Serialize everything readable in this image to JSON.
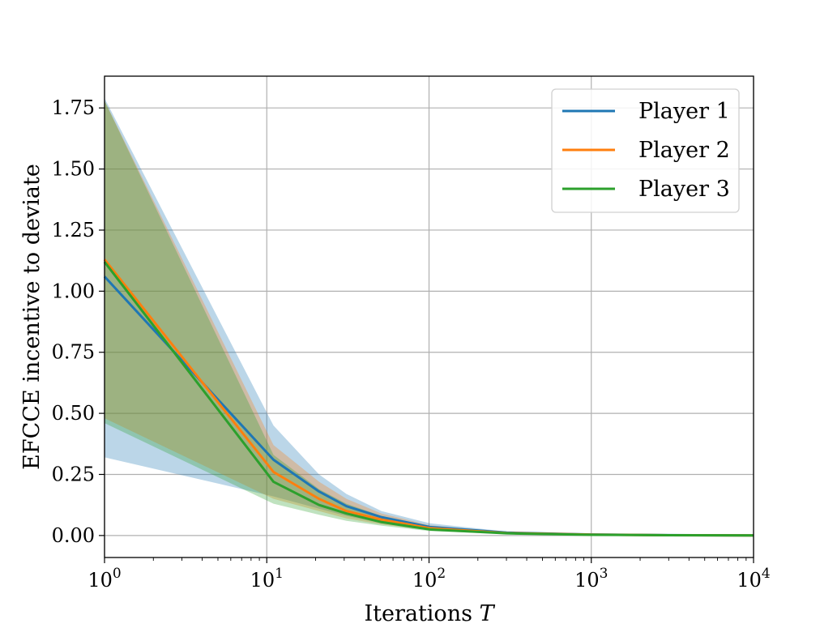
{
  "chart_data": {
    "type": "line",
    "xlabel": "Iterations ",
    "xlabel_var": "T",
    "ylabel": "EFCCE incentive to deviate",
    "xscale": "log",
    "xlim": [
      1,
      10000
    ],
    "ylim": [
      -0.09,
      1.88
    ],
    "grid": true,
    "legend_position": "top-right",
    "y_ticks": [
      "0.00",
      "0.25",
      "0.50",
      "0.75",
      "1.00",
      "1.25",
      "1.50",
      "1.75"
    ],
    "y_tick_values": [
      0,
      0.25,
      0.5,
      0.75,
      1.0,
      1.25,
      1.5,
      1.75
    ],
    "x_tick_values": [
      1,
      10,
      100,
      1000,
      10000
    ],
    "x_tick_base": "10",
    "x_tick_exponents": [
      "0",
      "1",
      "2",
      "3",
      "4"
    ],
    "series": [
      {
        "name": "Player 1",
        "color": "#1f77b4",
        "x": [
          1,
          11,
          21,
          31,
          51,
          101,
          301,
          1001,
          3001,
          10000
        ],
        "y": [
          1.06,
          0.31,
          0.18,
          0.12,
          0.075,
          0.035,
          0.012,
          0.004,
          0.0015,
          0.0005
        ],
        "y_low": [
          0.32,
          0.16,
          0.11,
          0.08,
          0.05,
          0.025,
          0.009,
          0.003,
          0.001,
          0.0003
        ],
        "y_high": [
          1.79,
          0.45,
          0.25,
          0.17,
          0.1,
          0.05,
          0.016,
          0.005,
          0.002,
          0.0007
        ]
      },
      {
        "name": "Player 2",
        "color": "#ff7f0e",
        "x": [
          1,
          11,
          21,
          31,
          51,
          101,
          301,
          1001,
          3001,
          10000
        ],
        "y": [
          1.13,
          0.26,
          0.15,
          0.1,
          0.065,
          0.03,
          0.01,
          0.0035,
          0.0013,
          0.0004
        ],
        "y_low": [
          0.48,
          0.15,
          0.1,
          0.07,
          0.045,
          0.022,
          0.008,
          0.0025,
          0.001,
          0.0003
        ],
        "y_high": [
          1.78,
          0.37,
          0.22,
          0.15,
          0.09,
          0.042,
          0.014,
          0.0045,
          0.0017,
          0.0006
        ]
      },
      {
        "name": "Player 3",
        "color": "#2ca02c",
        "x": [
          1,
          11,
          21,
          31,
          51,
          101,
          301,
          1001,
          3001,
          10000
        ],
        "y": [
          1.12,
          0.22,
          0.125,
          0.09,
          0.055,
          0.025,
          0.009,
          0.003,
          0.0011,
          0.0004
        ],
        "y_low": [
          0.46,
          0.13,
          0.085,
          0.06,
          0.04,
          0.018,
          0.006,
          0.002,
          0.0008,
          0.0002
        ],
        "y_high": [
          1.78,
          0.33,
          0.19,
          0.13,
          0.08,
          0.036,
          0.012,
          0.004,
          0.0015,
          0.0005
        ]
      }
    ]
  }
}
